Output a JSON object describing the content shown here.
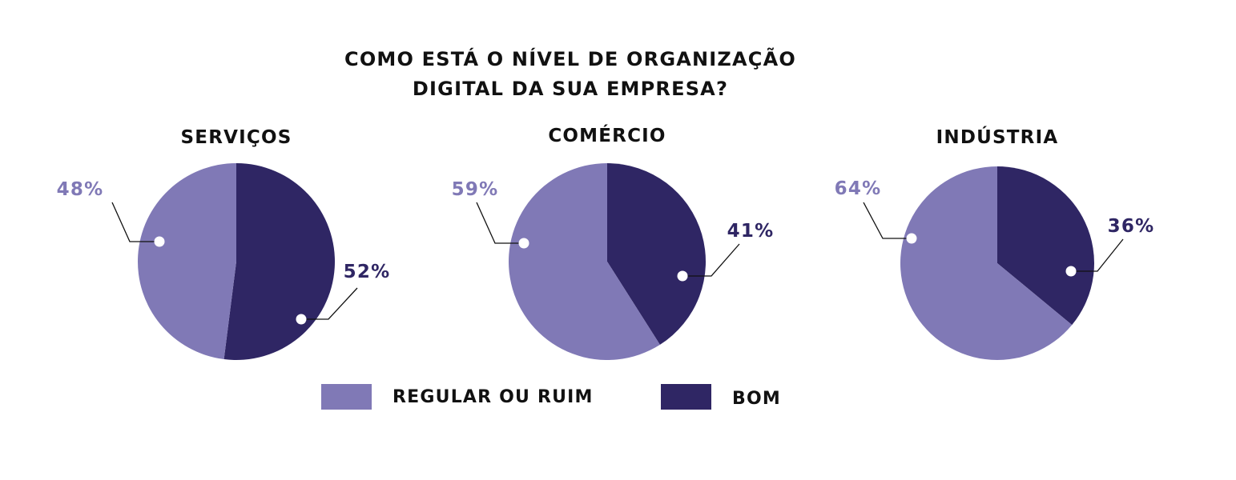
{
  "chart_data": {
    "type": "pie",
    "title_lines": [
      "COMO ESTÁ O NÍVEL DE ORGANIZAÇÃO",
      "DIGITAL DA SUA EMPRESA?"
    ],
    "legend": [
      {
        "label": "REGULAR OU RUIM",
        "color": "#8079b6"
      },
      {
        "label": "BOM",
        "color": "#2f2664"
      }
    ],
    "charts": [
      {
        "title": "SERVIÇOS",
        "slices": [
          {
            "label": "REGULAR OU RUIM",
            "value": 48,
            "display": "48%",
            "color": "#8079b6"
          },
          {
            "label": "BOM",
            "value": 52,
            "display": "52%",
            "color": "#2f2664"
          }
        ]
      },
      {
        "title": "COMÉRCIO",
        "slices": [
          {
            "label": "REGULAR OU RUIM",
            "value": 59,
            "display": "59%",
            "color": "#8079b6"
          },
          {
            "label": "BOM",
            "value": 41,
            "display": "41%",
            "color": "#2f2664"
          }
        ]
      },
      {
        "title": "INDÚSTRIA",
        "slices": [
          {
            "label": "REGULAR OU RUIM",
            "value": 64,
            "display": "64%",
            "color": "#8079b6"
          },
          {
            "label": "BOM",
            "value": 36,
            "display": "36%",
            "color": "#2f2664"
          }
        ]
      }
    ]
  }
}
